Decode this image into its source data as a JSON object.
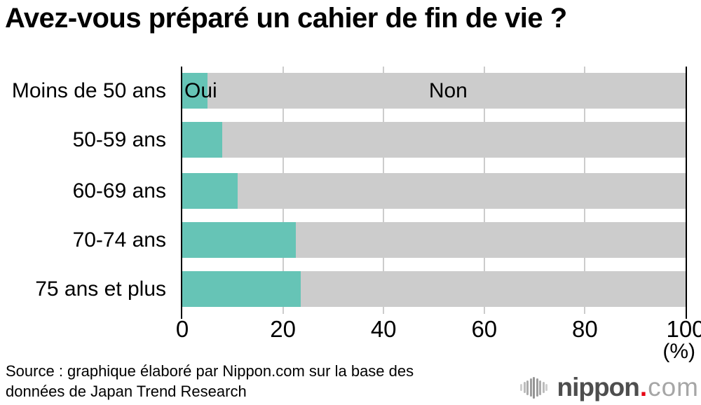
{
  "title": "Avez-vous préparé un cahier de fin de vie ?",
  "chart_data": {
    "type": "bar",
    "orientation": "horizontal",
    "stacked": true,
    "title": "Avez-vous préparé un cahier de fin de vie ?",
    "categories": [
      "Moins de 50 ans",
      "50-59 ans",
      "60-69 ans",
      "70-74 ans",
      "75 ans et plus"
    ],
    "series": [
      {
        "name": "Oui",
        "color": "#66c4b6",
        "values": [
          5,
          8,
          11,
          22.5,
          23.5
        ]
      },
      {
        "name": "Non",
        "color": "#cccccc",
        "values": [
          95,
          92,
          89,
          77.5,
          76.5
        ]
      }
    ],
    "x_ticks": [
      "0",
      "20",
      "40",
      "60",
      "80",
      "100"
    ],
    "x_tick_values": [
      0,
      20,
      40,
      60,
      80,
      100
    ],
    "xlim": [
      0,
      100
    ],
    "unit_label": "(%)",
    "grid": "vertical",
    "legend_position": "inline-first-bar"
  },
  "colors": {
    "oui": "#66c4b6",
    "non": "#cccccc",
    "gridline": "#cccccc",
    "axis": "#000000",
    "logo_brand": "#4e4e4e",
    "logo_dot": "#e60012",
    "logo_tld": "#a6a6a6"
  },
  "source": {
    "line1": "Source : graphique élaboré par Nippon.com sur la base des",
    "line2": "données de Japan Trend Research"
  },
  "logo": {
    "brand": "nippon",
    "dot": ".",
    "tld": "com"
  }
}
